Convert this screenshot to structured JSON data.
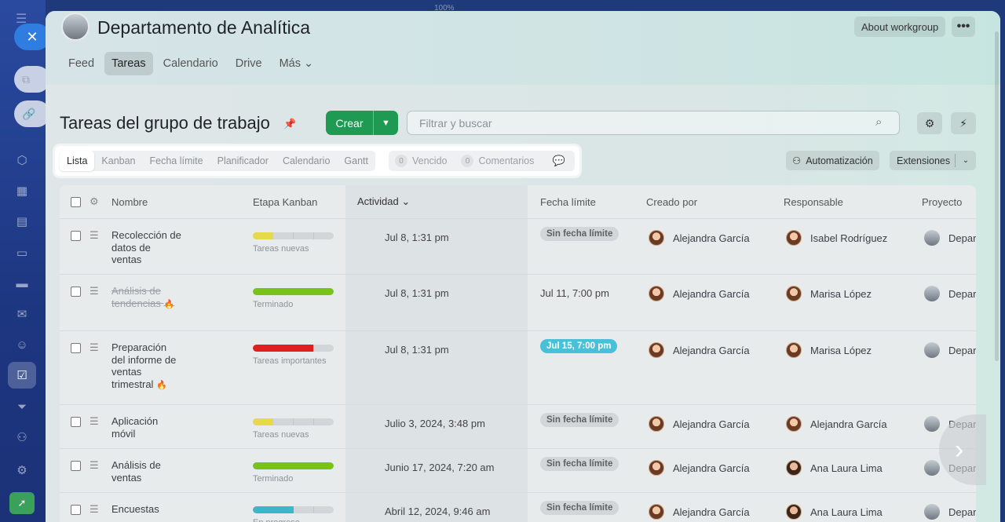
{
  "browser": {
    "zoom": "100%"
  },
  "group": {
    "title": "Departamento de Analítica",
    "about_label": "About workgroup",
    "more_label": "•••"
  },
  "nav": [
    {
      "label": "Feed"
    },
    {
      "label": "Tareas"
    },
    {
      "label": "Calendario"
    },
    {
      "label": "Drive"
    },
    {
      "label": "Más ⌄"
    }
  ],
  "page": {
    "title": "Tareas del grupo de trabajo",
    "create_label": "Crear",
    "search_placeholder": "Filtrar y buscar"
  },
  "views": [
    {
      "label": "Lista"
    },
    {
      "label": "Kanban"
    },
    {
      "label": "Fecha límite"
    },
    {
      "label": "Planificador"
    },
    {
      "label": "Calendario"
    },
    {
      "label": "Gantt"
    }
  ],
  "counters": {
    "overdue": {
      "count": "0",
      "label": "Vencido"
    },
    "comments": {
      "count": "0",
      "label": "Comentarios"
    }
  },
  "toolbar": {
    "automation_label": "Automatización",
    "extensions_label": "Extensiones"
  },
  "columns": {
    "name": "Nombre",
    "stage": "Etapa Kanban",
    "activity": "Actividad ⌄",
    "deadline": "Fecha límite",
    "created_by": "Creado por",
    "responsible": "Responsable",
    "project": "Proyecto"
  },
  "tasks": [
    {
      "name": "Recolección de datos de ventas",
      "stage": "Tareas nuevas",
      "stage_color": "#e6d94a",
      "stage_fill": 0.25,
      "activity": "Jul 8, 1:31 pm",
      "deadline": "Sin fecha límite",
      "created_by": "Alejandra García",
      "responsible": "Isabel Rodríguez",
      "project": "Depar"
    },
    {
      "name": "Análisis de tendencias",
      "stage": "Terminado",
      "stage_color": "#78c21a",
      "stage_fill": 1.0,
      "activity": "Jul 8, 1:31 pm",
      "deadline": "Jul 11, 7:00 pm",
      "created_by": "Alejandra García",
      "responsible": "Marisa López",
      "project": "Depar"
    },
    {
      "name": "Preparación del informe de ventas trimestral",
      "stage": "Tareas importantes",
      "stage_color": "#e0201e",
      "stage_fill": 0.75,
      "activity": "Jul 8, 1:31 pm",
      "deadline": "Jul 15, 7:00 pm",
      "created_by": "Alejandra García",
      "responsible": "Marisa López",
      "project": "Depar"
    },
    {
      "name": "Aplicación móvil",
      "stage": "Tareas nuevas",
      "stage_color": "#e6d94a",
      "stage_fill": 0.25,
      "activity": "Julio 3, 2024, 3:48 pm",
      "deadline": "Sin fecha límite",
      "created_by": "Alejandra García",
      "responsible": "Alejandra García",
      "project": "Depar"
    },
    {
      "name": "Análisis de ventas",
      "stage": "Terminado",
      "stage_color": "#78c21a",
      "stage_fill": 1.0,
      "activity": "Junio 17, 2024, 7:20 am",
      "deadline": "Sin fecha límite",
      "created_by": "Alejandra García",
      "responsible": "Ana Laura Lima",
      "project": "Depar"
    },
    {
      "name": "Encuestas",
      "stage": "En progreso",
      "stage_color": "#3fb6c8",
      "stage_fill": 0.5,
      "activity": "Abril 12, 2024, 9:46 am",
      "deadline": "Sin fecha límite",
      "created_by": "Alejandra García",
      "responsible": "Ana Laura Lima",
      "project": "Depar"
    }
  ]
}
